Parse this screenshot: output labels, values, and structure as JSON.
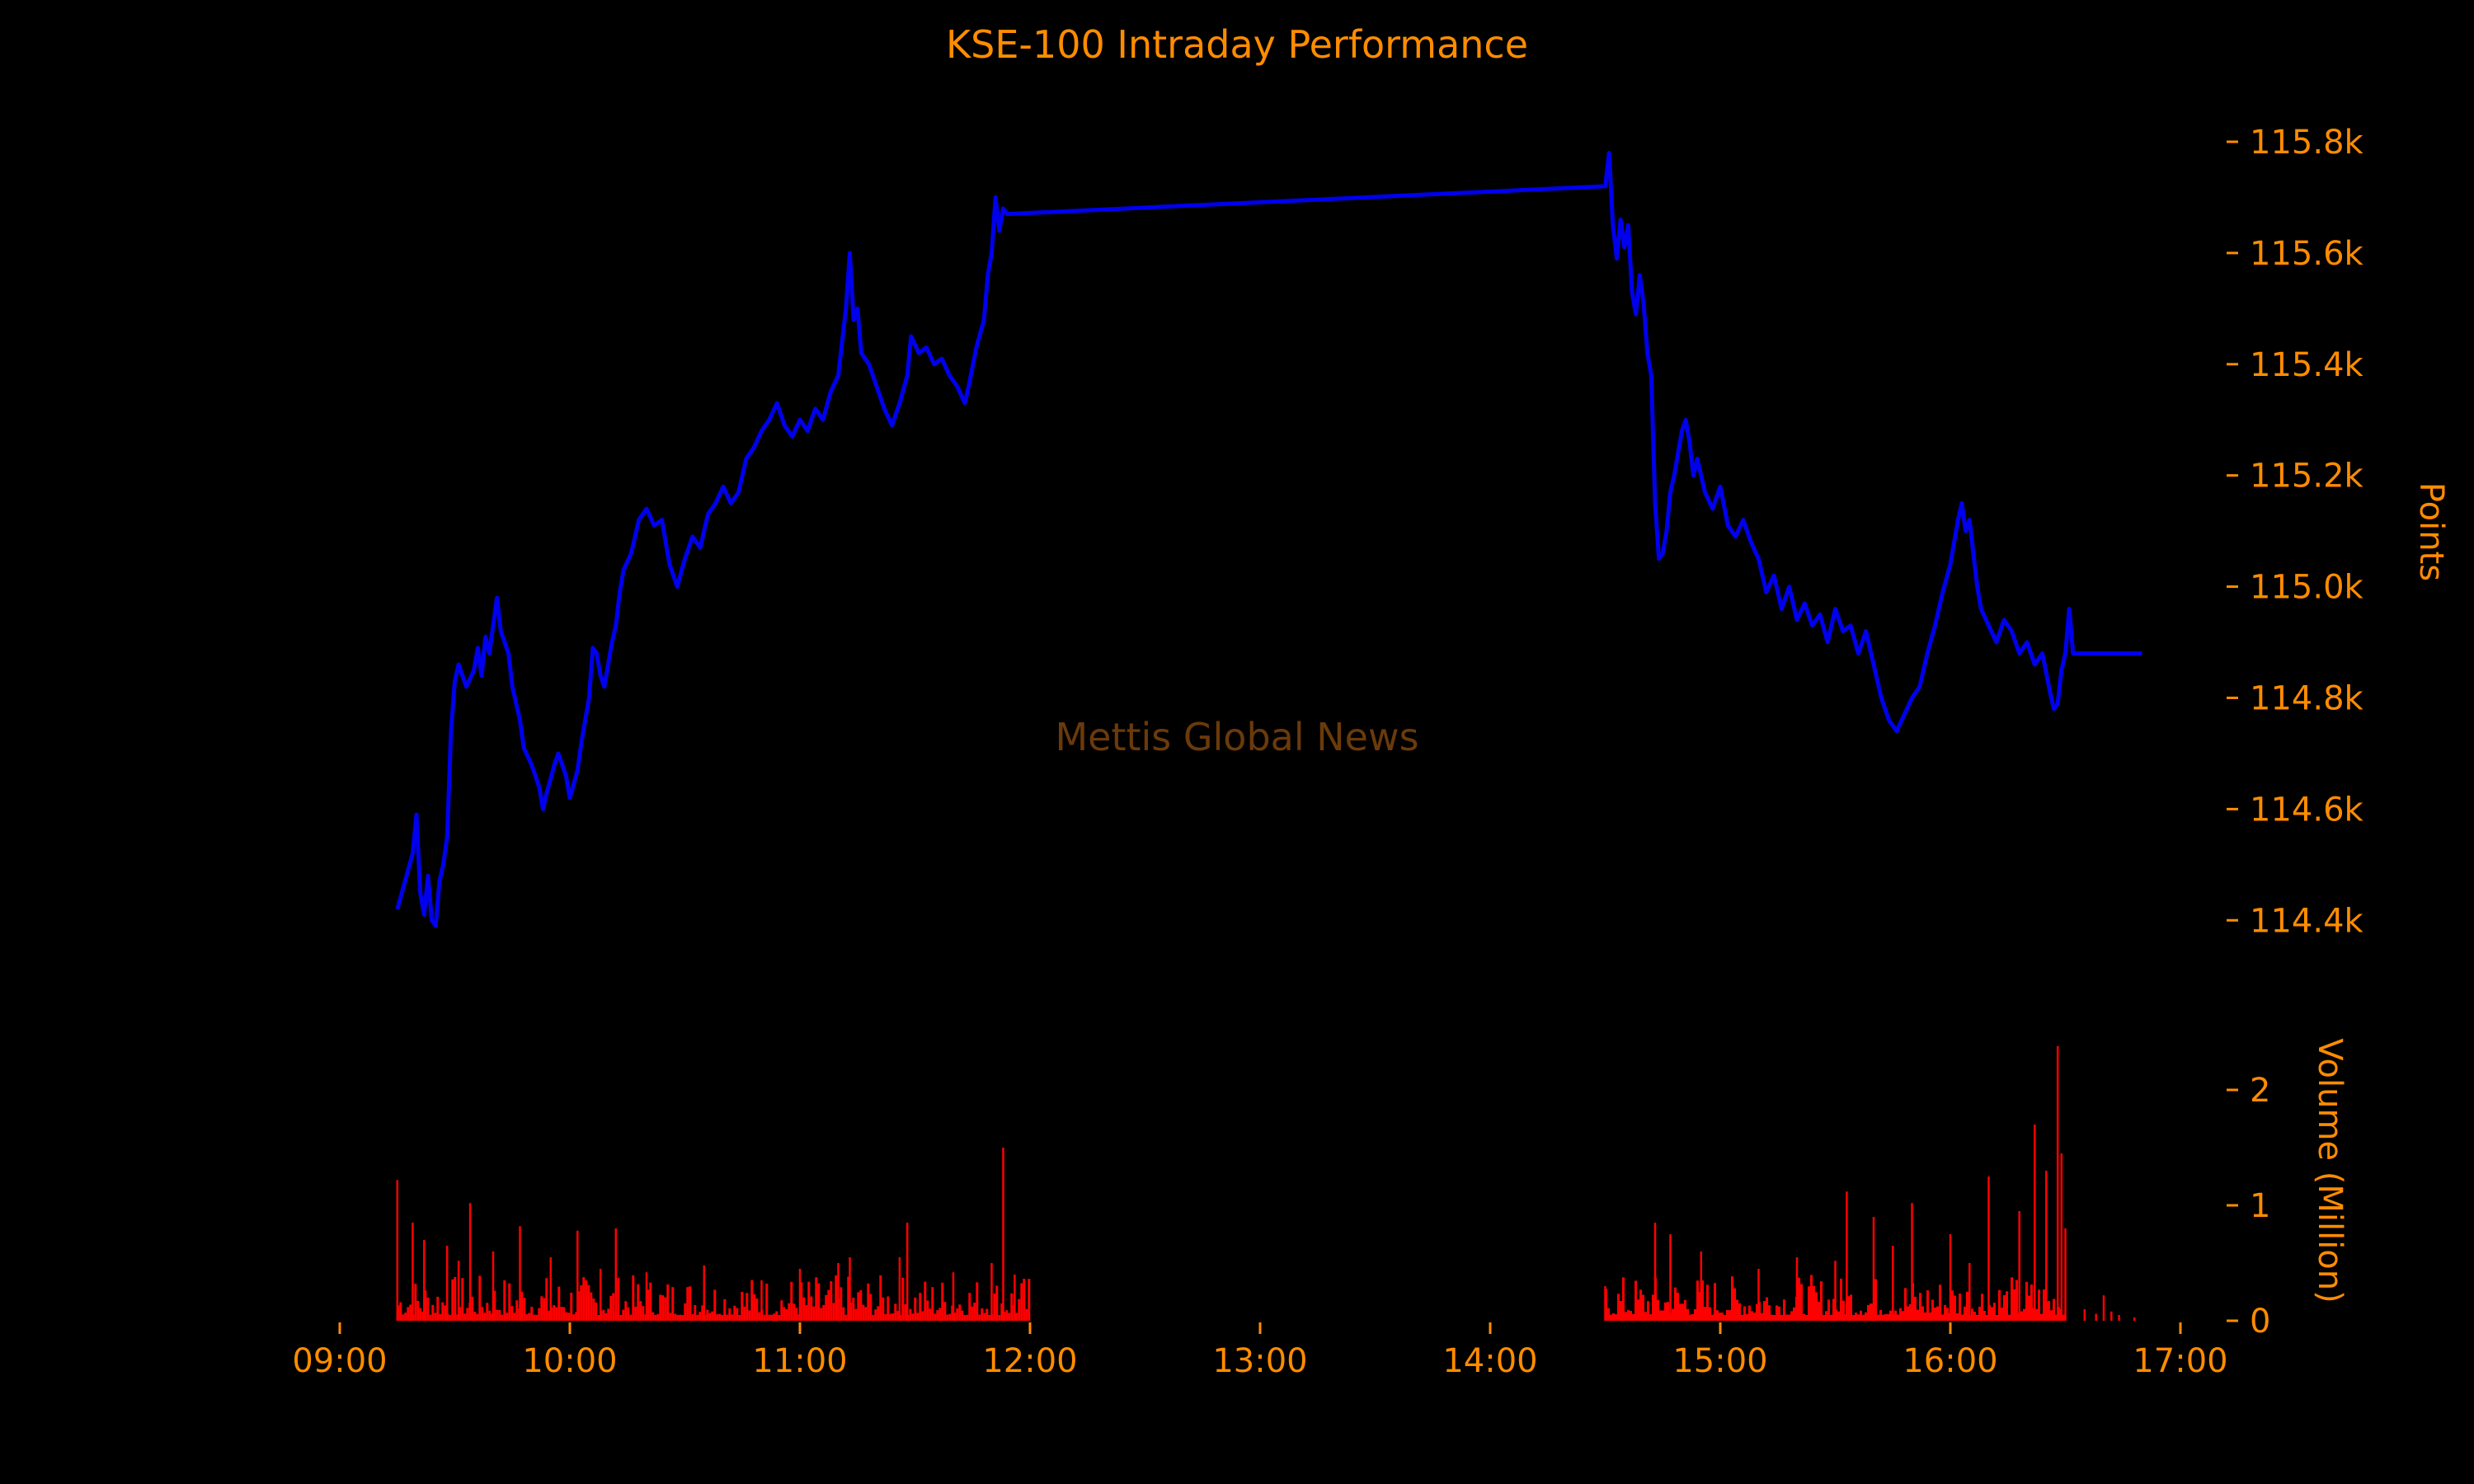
{
  "colors": {
    "background": "#000000",
    "text": "#ff8c00",
    "price_line": "#0000ee",
    "volume_bars": "#ff0000",
    "watermark": "#6b3a0a"
  },
  "chart_data": {
    "type": "line",
    "title": "KSE-100 Intraday Performance",
    "watermark": "Mettis Global News",
    "grid": false,
    "price_panel": {
      "ylabel": "Points",
      "ylim": [
        114350,
        115880
      ],
      "ytick_values": [
        114400,
        114600,
        114800,
        115000,
        115200,
        115400,
        115600,
        115800
      ],
      "ytick_labels": [
        "114.4k",
        "114.6k",
        "114.8k",
        "115.0k",
        "115.2k",
        "115.4k",
        "115.6k",
        "115.8k"
      ],
      "series": [
        {
          "points": [
            [
              "09:15",
              114420
            ],
            [
              "09:17",
              114470
            ],
            [
              "09:19",
              114520
            ],
            [
              "09:20",
              114590
            ],
            [
              "09:21",
              114450
            ],
            [
              "09:22",
              114410
            ],
            [
              "09:23",
              114480
            ],
            [
              "09:24",
              114400
            ],
            [
              "09:25",
              114390
            ],
            [
              "09:26",
              114470
            ],
            [
              "09:27",
              114500
            ],
            [
              "09:28",
              114550
            ],
            [
              "09:29",
              114740
            ],
            [
              "09:30",
              114830
            ],
            [
              "09:31",
              114860
            ],
            [
              "09:33",
              114820
            ],
            [
              "09:35",
              114850
            ],
            [
              "09:36",
              114890
            ],
            [
              "09:37",
              114840
            ],
            [
              "09:38",
              114910
            ],
            [
              "09:39",
              114880
            ],
            [
              "09:40",
              114930
            ],
            [
              "09:41",
              114980
            ],
            [
              "09:42",
              114920
            ],
            [
              "09:44",
              114880
            ],
            [
              "09:45",
              114820
            ],
            [
              "09:46",
              114790
            ],
            [
              "09:47",
              114760
            ],
            [
              "09:48",
              114710
            ],
            [
              "09:50",
              114680
            ],
            [
              "09:52",
              114640
            ],
            [
              "09:53",
              114600
            ],
            [
              "09:54",
              114630
            ],
            [
              "09:56",
              114680
            ],
            [
              "09:57",
              114700
            ],
            [
              "09:59",
              114660
            ],
            [
              "10:00",
              114620
            ],
            [
              "10:02",
              114670
            ],
            [
              "10:03",
              114720
            ],
            [
              "10:05",
              114800
            ],
            [
              "10:06",
              114890
            ],
            [
              "10:07",
              114880
            ],
            [
              "10:08",
              114840
            ],
            [
              "10:09",
              114820
            ],
            [
              "10:11",
              114900
            ],
            [
              "10:12",
              114930
            ],
            [
              "10:13",
              114990
            ],
            [
              "10:14",
              115030
            ],
            [
              "10:16",
              115060
            ],
            [
              "10:18",
              115120
            ],
            [
              "10:20",
              115140
            ],
            [
              "10:22",
              115110
            ],
            [
              "10:24",
              115120
            ],
            [
              "10:26",
              115040
            ],
            [
              "10:28",
              115000
            ],
            [
              "10:30",
              115050
            ],
            [
              "10:32",
              115090
            ],
            [
              "10:34",
              115070
            ],
            [
              "10:36",
              115130
            ],
            [
              "10:38",
              115150
            ],
            [
              "10:40",
              115180
            ],
            [
              "10:42",
              115150
            ],
            [
              "10:44",
              115170
            ],
            [
              "10:46",
              115230
            ],
            [
              "10:48",
              115250
            ],
            [
              "10:50",
              115280
            ],
            [
              "10:52",
              115300
            ],
            [
              "10:54",
              115330
            ],
            [
              "10:56",
              115290
            ],
            [
              "10:58",
              115270
            ],
            [
              "11:00",
              115300
            ],
            [
              "11:02",
              115280
            ],
            [
              "11:04",
              115320
            ],
            [
              "11:06",
              115300
            ],
            [
              "11:08",
              115350
            ],
            [
              "11:10",
              115380
            ],
            [
              "11:11",
              115440
            ],
            [
              "11:12",
              115500
            ],
            [
              "11:13",
              115600
            ],
            [
              "11:14",
              115480
            ],
            [
              "11:15",
              115500
            ],
            [
              "11:16",
              115420
            ],
            [
              "11:18",
              115400
            ],
            [
              "11:20",
              115360
            ],
            [
              "11:22",
              115320
            ],
            [
              "11:24",
              115290
            ],
            [
              "11:26",
              115330
            ],
            [
              "11:28",
              115380
            ],
            [
              "11:29",
              115450
            ],
            [
              "11:31",
              115420
            ],
            [
              "11:33",
              115430
            ],
            [
              "11:35",
              115400
            ],
            [
              "11:37",
              115410
            ],
            [
              "11:39",
              115380
            ],
            [
              "11:41",
              115360
            ],
            [
              "11:43",
              115330
            ],
            [
              "11:44",
              115360
            ],
            [
              "11:46",
              115430
            ],
            [
              "11:48",
              115480
            ],
            [
              "11:49",
              115560
            ],
            [
              "11:50",
              115600
            ],
            [
              "11:51",
              115700
            ],
            [
              "11:52",
              115640
            ],
            [
              "11:53",
              115680
            ],
            [
              "11:54",
              115670
            ],
            [
              "14:30",
              115720
            ],
            [
              "14:31",
              115780
            ],
            [
              "14:32",
              115650
            ],
            [
              "14:33",
              115590
            ],
            [
              "14:34",
              115660
            ],
            [
              "14:35",
              115610
            ],
            [
              "14:36",
              115650
            ],
            [
              "14:37",
              115530
            ],
            [
              "14:38",
              115490
            ],
            [
              "14:39",
              115560
            ],
            [
              "14:40",
              115510
            ],
            [
              "14:41",
              115420
            ],
            [
              "14:42",
              115380
            ],
            [
              "14:43",
              115150
            ],
            [
              "14:44",
              115050
            ],
            [
              "14:45",
              115060
            ],
            [
              "14:46",
              115100
            ],
            [
              "14:47",
              115170
            ],
            [
              "14:48",
              115200
            ],
            [
              "14:49",
              115240
            ],
            [
              "14:50",
              115280
            ],
            [
              "14:51",
              115300
            ],
            [
              "14:52",
              115260
            ],
            [
              "14:53",
              115200
            ],
            [
              "14:54",
              115230
            ],
            [
              "14:56",
              115170
            ],
            [
              "14:58",
              115140
            ],
            [
              "15:00",
              115180
            ],
            [
              "15:02",
              115110
            ],
            [
              "15:04",
              115090
            ],
            [
              "15:06",
              115120
            ],
            [
              "15:08",
              115080
            ],
            [
              "15:10",
              115050
            ],
            [
              "15:12",
              114990
            ],
            [
              "15:14",
              115020
            ],
            [
              "15:16",
              114960
            ],
            [
              "15:18",
              115000
            ],
            [
              "15:20",
              114940
            ],
            [
              "15:22",
              114970
            ],
            [
              "15:24",
              114930
            ],
            [
              "15:26",
              114950
            ],
            [
              "15:28",
              114900
            ],
            [
              "15:30",
              114960
            ],
            [
              "15:32",
              114920
            ],
            [
              "15:34",
              114930
            ],
            [
              "15:36",
              114880
            ],
            [
              "15:38",
              114920
            ],
            [
              "15:40",
              114860
            ],
            [
              "15:42",
              114800
            ],
            [
              "15:44",
              114760
            ],
            [
              "15:46",
              114740
            ],
            [
              "15:48",
              114770
            ],
            [
              "15:50",
              114800
            ],
            [
              "15:52",
              114820
            ],
            [
              "15:54",
              114880
            ],
            [
              "15:56",
              114930
            ],
            [
              "15:58",
              114990
            ],
            [
              "16:00",
              115040
            ],
            [
              "16:02",
              115120
            ],
            [
              "16:03",
              115150
            ],
            [
              "16:04",
              115100
            ],
            [
              "16:05",
              115120
            ],
            [
              "16:06",
              115060
            ],
            [
              "16:07",
              115000
            ],
            [
              "16:08",
              114960
            ],
            [
              "16:10",
              114930
            ],
            [
              "16:12",
              114900
            ],
            [
              "16:14",
              114940
            ],
            [
              "16:16",
              114920
            ],
            [
              "16:18",
              114880
            ],
            [
              "16:20",
              114900
            ],
            [
              "16:22",
              114860
            ],
            [
              "16:24",
              114880
            ],
            [
              "16:26",
              114810
            ],
            [
              "16:27",
              114780
            ],
            [
              "16:28",
              114790
            ],
            [
              "16:29",
              114850
            ],
            [
              "16:30",
              114880
            ],
            [
              "16:31",
              114960
            ],
            [
              "16:32",
              114880
            ],
            [
              "16:50",
              114880
            ]
          ]
        }
      ]
    },
    "volume_panel": {
      "ylabel": "Volume (Million)",
      "ylim": [
        0,
        2.5
      ],
      "ytick_values": [
        0,
        1,
        2
      ],
      "ytick_labels": [
        "0",
        "1",
        "2"
      ],
      "sessions": [
        {
          "start": "09:15",
          "end": "12:00"
        },
        {
          "start": "14:30",
          "end": "16:30"
        }
      ],
      "spikes": [
        [
          "09:15",
          1.22
        ],
        [
          "09:19",
          0.85
        ],
        [
          "09:22",
          0.7
        ],
        [
          "09:28",
          0.65
        ],
        [
          "09:31",
          0.52
        ],
        [
          "09:34",
          1.02
        ],
        [
          "09:40",
          0.6
        ],
        [
          "09:47",
          0.82
        ],
        [
          "09:55",
          0.55
        ],
        [
          "10:02",
          0.78
        ],
        [
          "10:08",
          0.45
        ],
        [
          "10:12",
          0.8
        ],
        [
          "10:20",
          0.42
        ],
        [
          "10:35",
          0.48
        ],
        [
          "10:50",
          0.35
        ],
        [
          "11:00",
          0.45
        ],
        [
          "11:10",
          0.5
        ],
        [
          "11:13",
          0.55
        ],
        [
          "11:26",
          0.55
        ],
        [
          "11:28",
          0.85
        ],
        [
          "11:40",
          0.42
        ],
        [
          "11:50",
          0.5
        ],
        [
          "11:53",
          1.5
        ],
        [
          "11:56",
          0.4
        ],
        [
          "14:30",
          0.3
        ],
        [
          "14:43",
          0.85
        ],
        [
          "14:47",
          0.75
        ],
        [
          "14:55",
          0.6
        ],
        [
          "15:10",
          0.45
        ],
        [
          "15:20",
          0.55
        ],
        [
          "15:30",
          0.52
        ],
        [
          "15:33",
          1.12
        ],
        [
          "15:40",
          0.9
        ],
        [
          "15:45",
          0.65
        ],
        [
          "15:50",
          1.02
        ],
        [
          "16:00",
          0.75
        ],
        [
          "16:05",
          0.5
        ],
        [
          "16:10",
          1.25
        ],
        [
          "16:18",
          0.95
        ],
        [
          "16:22",
          1.7
        ],
        [
          "16:25",
          1.3
        ],
        [
          "16:28",
          2.38
        ],
        [
          "16:29",
          1.45
        ],
        [
          "16:30",
          0.8
        ]
      ],
      "post_close_spikes": [
        [
          "16:35",
          0.1
        ],
        [
          "16:38",
          0.06
        ],
        [
          "16:40",
          0.22
        ],
        [
          "16:42",
          0.08
        ],
        [
          "16:44",
          0.05
        ],
        [
          "16:48",
          0.03
        ]
      ]
    },
    "x_axis": {
      "range": [
        "09:00",
        "17:00"
      ],
      "tick_labels": [
        "09:00",
        "10:00",
        "11:00",
        "12:00",
        "13:00",
        "14:00",
        "15:00",
        "16:00",
        "17:00"
      ]
    }
  }
}
